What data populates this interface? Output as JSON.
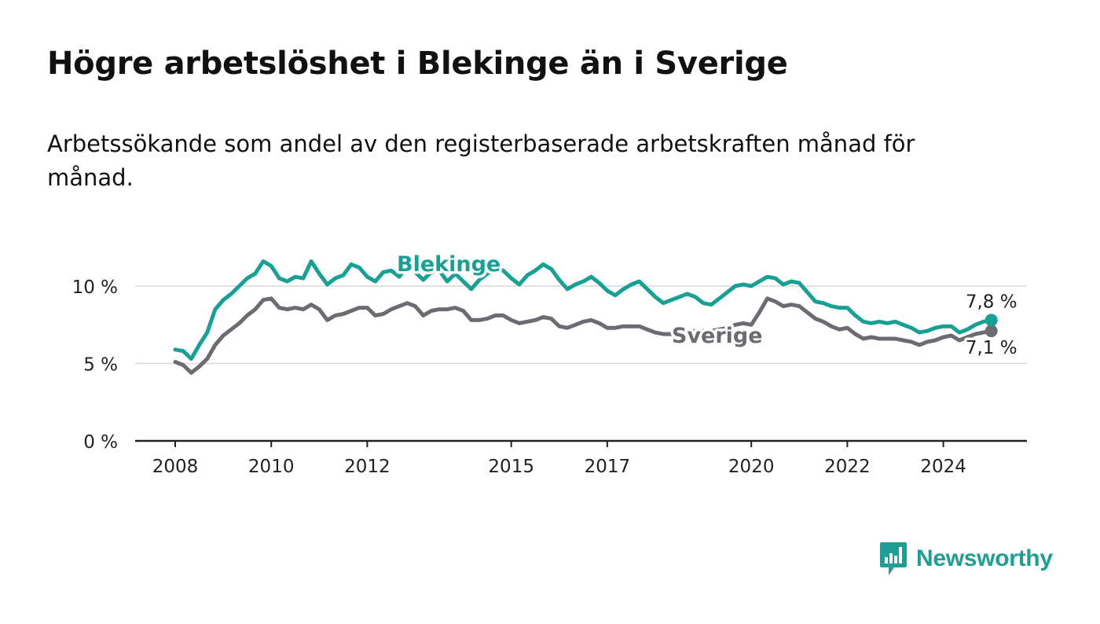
{
  "title": "Högre arbetslöshet i Blekinge än i Sverige",
  "subtitle": "Arbetssökande som andel av den registerbaserade arbetskraften månad för månad.",
  "brand": {
    "name": "Newsworthy",
    "color": "#1f9e94",
    "icon": "newsworthy-logo-icon"
  },
  "colors": {
    "blekinge": "#16a194",
    "sverige": "#6d6a72",
    "grid": "#d9d9d9",
    "axis": "#222222"
  },
  "chart_data": {
    "type": "line",
    "x_ticks": [
      "2008",
      "2010",
      "2012",
      "2015",
      "2017",
      "2020",
      "2022",
      "2024"
    ],
    "y_ticks": [
      "0 %",
      "5 %",
      "10 %"
    ],
    "ylim": [
      0,
      12
    ],
    "xlim": [
      "2007-02",
      "2026-05"
    ],
    "grid": true,
    "series": [
      {
        "name": "Blekinge",
        "end_label": "7,8 %",
        "points": [
          [
            "2008-01",
            5.9
          ],
          [
            "2008-03",
            5.8
          ],
          [
            "2008-05",
            5.3
          ],
          [
            "2008-07",
            6.2
          ],
          [
            "2008-09",
            7.0
          ],
          [
            "2008-11",
            8.5
          ],
          [
            "2009-01",
            9.1
          ],
          [
            "2009-03",
            9.5
          ],
          [
            "2009-05",
            10.0
          ],
          [
            "2009-07",
            10.5
          ],
          [
            "2009-09",
            10.8
          ],
          [
            "2009-11",
            11.6
          ],
          [
            "2010-01",
            11.3
          ],
          [
            "2010-03",
            10.5
          ],
          [
            "2010-05",
            10.3
          ],
          [
            "2010-07",
            10.6
          ],
          [
            "2010-09",
            10.5
          ],
          [
            "2010-11",
            11.6
          ],
          [
            "2011-01",
            10.8
          ],
          [
            "2011-03",
            10.1
          ],
          [
            "2011-05",
            10.5
          ],
          [
            "2011-07",
            10.7
          ],
          [
            "2011-09",
            11.4
          ],
          [
            "2011-11",
            11.2
          ],
          [
            "2012-01",
            10.6
          ],
          [
            "2012-03",
            10.3
          ],
          [
            "2012-05",
            10.9
          ],
          [
            "2012-07",
            11.0
          ],
          [
            "2012-09",
            10.6
          ],
          [
            "2012-11",
            11.3
          ],
          [
            "2013-01",
            10.9
          ],
          [
            "2013-03",
            10.4
          ],
          [
            "2013-05",
            10.9
          ],
          [
            "2013-07",
            11.0
          ],
          [
            "2013-09",
            10.3
          ],
          [
            "2013-11",
            10.8
          ],
          [
            "2014-01",
            10.3
          ],
          [
            "2014-03",
            9.8
          ],
          [
            "2014-05",
            10.4
          ],
          [
            "2014-07",
            10.8
          ],
          [
            "2014-09",
            11.1
          ],
          [
            "2014-11",
            11.0
          ],
          [
            "2015-01",
            10.5
          ],
          [
            "2015-03",
            10.1
          ],
          [
            "2015-05",
            10.7
          ],
          [
            "2015-07",
            11.0
          ],
          [
            "2015-09",
            11.4
          ],
          [
            "2015-11",
            11.1
          ],
          [
            "2016-01",
            10.4
          ],
          [
            "2016-03",
            9.8
          ],
          [
            "2016-05",
            10.1
          ],
          [
            "2016-07",
            10.3
          ],
          [
            "2016-09",
            10.6
          ],
          [
            "2016-11",
            10.2
          ],
          [
            "2017-01",
            9.7
          ],
          [
            "2017-03",
            9.4
          ],
          [
            "2017-05",
            9.8
          ],
          [
            "2017-07",
            10.1
          ],
          [
            "2017-09",
            10.3
          ],
          [
            "2017-11",
            9.8
          ],
          [
            "2018-01",
            9.3
          ],
          [
            "2018-03",
            8.9
          ],
          [
            "2018-05",
            9.1
          ],
          [
            "2018-07",
            9.3
          ],
          [
            "2018-09",
            9.5
          ],
          [
            "2018-11",
            9.3
          ],
          [
            "2019-01",
            8.9
          ],
          [
            "2019-03",
            8.8
          ],
          [
            "2019-05",
            9.2
          ],
          [
            "2019-07",
            9.6
          ],
          [
            "2019-09",
            10.0
          ],
          [
            "2019-11",
            10.1
          ],
          [
            "2020-01",
            10.0
          ],
          [
            "2020-03",
            10.3
          ],
          [
            "2020-05",
            10.6
          ],
          [
            "2020-07",
            10.5
          ],
          [
            "2020-09",
            10.1
          ],
          [
            "2020-11",
            10.3
          ],
          [
            "2021-01",
            10.2
          ],
          [
            "2021-03",
            9.6
          ],
          [
            "2021-05",
            9.0
          ],
          [
            "2021-07",
            8.9
          ],
          [
            "2021-09",
            8.7
          ],
          [
            "2021-11",
            8.6
          ],
          [
            "2022-01",
            8.6
          ],
          [
            "2022-03",
            8.1
          ],
          [
            "2022-05",
            7.7
          ],
          [
            "2022-07",
            7.6
          ],
          [
            "2022-09",
            7.7
          ],
          [
            "2022-11",
            7.6
          ],
          [
            "2023-01",
            7.7
          ],
          [
            "2023-03",
            7.5
          ],
          [
            "2023-05",
            7.3
          ],
          [
            "2023-07",
            7.0
          ],
          [
            "2023-09",
            7.1
          ],
          [
            "2023-11",
            7.3
          ],
          [
            "2024-01",
            7.4
          ],
          [
            "2024-03",
            7.4
          ],
          [
            "2024-05",
            7.0
          ],
          [
            "2024-07",
            7.2
          ],
          [
            "2024-09",
            7.5
          ],
          [
            "2024-11",
            7.7
          ],
          [
            "2025-01",
            7.8
          ]
        ]
      },
      {
        "name": "Sverige",
        "end_label": "7,1 %",
        "points": [
          [
            "2008-01",
            5.1
          ],
          [
            "2008-03",
            4.9
          ],
          [
            "2008-05",
            4.4
          ],
          [
            "2008-07",
            4.8
          ],
          [
            "2008-09",
            5.3
          ],
          [
            "2008-11",
            6.2
          ],
          [
            "2009-01",
            6.8
          ],
          [
            "2009-03",
            7.2
          ],
          [
            "2009-05",
            7.6
          ],
          [
            "2009-07",
            8.1
          ],
          [
            "2009-09",
            8.5
          ],
          [
            "2009-11",
            9.1
          ],
          [
            "2010-01",
            9.2
          ],
          [
            "2010-03",
            8.6
          ],
          [
            "2010-05",
            8.5
          ],
          [
            "2010-07",
            8.6
          ],
          [
            "2010-09",
            8.5
          ],
          [
            "2010-11",
            8.8
          ],
          [
            "2011-01",
            8.5
          ],
          [
            "2011-03",
            7.8
          ],
          [
            "2011-05",
            8.1
          ],
          [
            "2011-07",
            8.2
          ],
          [
            "2011-09",
            8.4
          ],
          [
            "2011-11",
            8.6
          ],
          [
            "2012-01",
            8.6
          ],
          [
            "2012-03",
            8.1
          ],
          [
            "2012-05",
            8.2
          ],
          [
            "2012-07",
            8.5
          ],
          [
            "2012-09",
            8.7
          ],
          [
            "2012-11",
            8.9
          ],
          [
            "2013-01",
            8.7
          ],
          [
            "2013-03",
            8.1
          ],
          [
            "2013-05",
            8.4
          ],
          [
            "2013-07",
            8.5
          ],
          [
            "2013-09",
            8.5
          ],
          [
            "2013-11",
            8.6
          ],
          [
            "2014-01",
            8.4
          ],
          [
            "2014-03",
            7.8
          ],
          [
            "2014-05",
            7.8
          ],
          [
            "2014-07",
            7.9
          ],
          [
            "2014-09",
            8.1
          ],
          [
            "2014-11",
            8.1
          ],
          [
            "2015-01",
            7.8
          ],
          [
            "2015-03",
            7.6
          ],
          [
            "2015-05",
            7.7
          ],
          [
            "2015-07",
            7.8
          ],
          [
            "2015-09",
            8.0
          ],
          [
            "2015-11",
            7.9
          ],
          [
            "2016-01",
            7.4
          ],
          [
            "2016-03",
            7.3
          ],
          [
            "2016-05",
            7.5
          ],
          [
            "2016-07",
            7.7
          ],
          [
            "2016-09",
            7.8
          ],
          [
            "2016-11",
            7.6
          ],
          [
            "2017-01",
            7.3
          ],
          [
            "2017-03",
            7.3
          ],
          [
            "2017-05",
            7.4
          ],
          [
            "2017-07",
            7.4
          ],
          [
            "2017-09",
            7.4
          ],
          [
            "2017-11",
            7.2
          ],
          [
            "2018-01",
            7.0
          ],
          [
            "2018-03",
            6.9
          ],
          [
            "2018-05",
            6.9
          ],
          [
            "2018-07",
            7.0
          ],
          [
            "2018-09",
            7.1
          ],
          [
            "2018-11",
            7.1
          ],
          [
            "2019-01",
            7.1
          ],
          [
            "2019-03",
            7.1
          ],
          [
            "2019-05",
            7.2
          ],
          [
            "2019-07",
            7.3
          ],
          [
            "2019-09",
            7.5
          ],
          [
            "2019-11",
            7.6
          ],
          [
            "2020-01",
            7.5
          ],
          [
            "2020-03",
            8.3
          ],
          [
            "2020-05",
            9.2
          ],
          [
            "2020-07",
            9.0
          ],
          [
            "2020-09",
            8.7
          ],
          [
            "2020-11",
            8.8
          ],
          [
            "2021-01",
            8.7
          ],
          [
            "2021-03",
            8.3
          ],
          [
            "2021-05",
            7.9
          ],
          [
            "2021-07",
            7.7
          ],
          [
            "2021-09",
            7.4
          ],
          [
            "2021-11",
            7.2
          ],
          [
            "2022-01",
            7.3
          ],
          [
            "2022-03",
            6.9
          ],
          [
            "2022-05",
            6.6
          ],
          [
            "2022-07",
            6.7
          ],
          [
            "2022-09",
            6.6
          ],
          [
            "2022-11",
            6.6
          ],
          [
            "2023-01",
            6.6
          ],
          [
            "2023-03",
            6.5
          ],
          [
            "2023-05",
            6.4
          ],
          [
            "2023-07",
            6.2
          ],
          [
            "2023-09",
            6.4
          ],
          [
            "2023-11",
            6.5
          ],
          [
            "2024-01",
            6.7
          ],
          [
            "2024-03",
            6.8
          ],
          [
            "2024-05",
            6.5
          ],
          [
            "2024-07",
            6.7
          ],
          [
            "2024-09",
            6.9
          ],
          [
            "2024-11",
            7.0
          ],
          [
            "2025-01",
            7.1
          ]
        ]
      }
    ]
  }
}
